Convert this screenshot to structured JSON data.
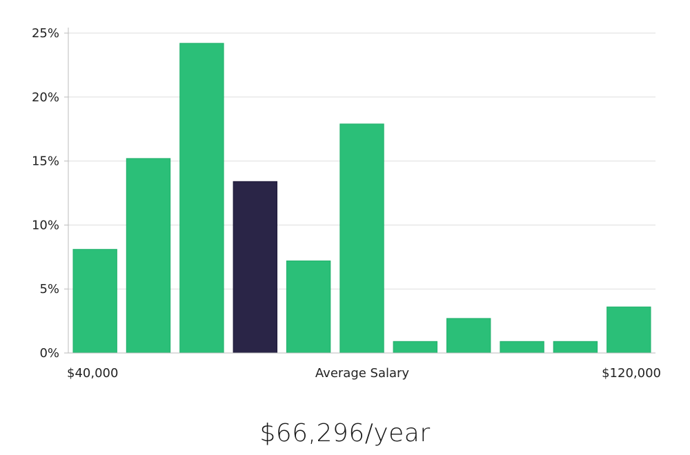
{
  "chart_data": {
    "type": "bar",
    "values": [
      8.1,
      15.2,
      24.2,
      13.4,
      7.2,
      17.9,
      0.9,
      2.7,
      0.9,
      0.9,
      3.6
    ],
    "highlight_index": 3,
    "ylim": [
      0,
      25
    ],
    "yticks": [
      "0%",
      "5%",
      "10%",
      "15%",
      "20%",
      "25%"
    ],
    "ytick_values": [
      0,
      5,
      10,
      15,
      20,
      25
    ],
    "x_min_label": "$40,000",
    "xlabel": "Average Salary",
    "x_max_label": "$120,000",
    "colors": {
      "bar": "#2bbf78",
      "highlight": "#2a2547",
      "grid": "#dddddd",
      "axis": "#bbbbbb"
    },
    "grid": true
  },
  "summary": {
    "average_salary": "$66,296/year"
  }
}
